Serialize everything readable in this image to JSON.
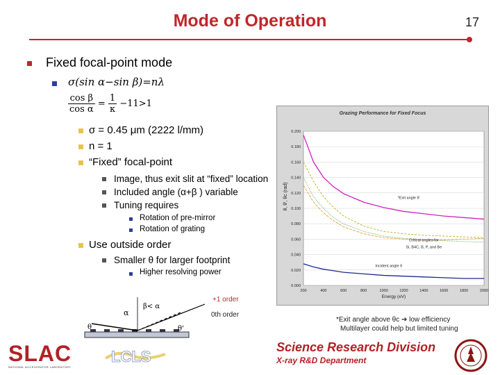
{
  "title": "Mode of Operation",
  "page_number": "17",
  "main_bullet": "Fixed focal-point mode",
  "equation1": {
    "sigma": "σ",
    "open": "(sin",
    "alpha": "α",
    "minus": "−sin",
    "beta": "β",
    "rhs": ")=nλ"
  },
  "equation2": {
    "num": "cos β",
    "den": "cos α",
    "mid": "=",
    "num2": "1",
    "den2": "κ",
    "rhs": "−11>1"
  },
  "params": [
    {
      "text": "σ = 0.45 μm (2222 l/mm)"
    },
    {
      "text": "n = 1"
    },
    {
      "text": "“Fixed” focal-point"
    }
  ],
  "sub_items": [
    {
      "text": "Image, thus exit slit at “fixed” location"
    },
    {
      "text": "Included angle (α+β ) variable"
    },
    {
      "text": "Tuning requires"
    }
  ],
  "tuning_items": [
    {
      "text": "Rotation of pre-mirror"
    },
    {
      "text": "Rotation of grating"
    }
  ],
  "outside_order": "Use outside order",
  "outside_sub": "Smaller θ for larger footprint",
  "outside_sub2": "Higher resolving power",
  "diagram": {
    "order_plus1": "+1 order",
    "order_zero": "0th order",
    "alpha": "α",
    "beta_lt_alpha": "β< α",
    "theta": "θ",
    "theta_prime": "θ'"
  },
  "chart_note": {
    "line1": "*Exit angle above θc ➔ low efficiency",
    "line2": "Multilayer could help but limited tuning"
  },
  "footer": {
    "srd": "Science Research Division",
    "xrd": "X-ray R&D Department"
  },
  "logos": {
    "slac": "SLAC",
    "slac_sub": "NATIONAL ACCELERATOR LABORATORY",
    "lcls": "LCLS"
  },
  "colors": {
    "accent": "#c0262b",
    "blue": "#2a3f9a",
    "yellow": "#e5c64a",
    "magenta": "#d020c0"
  },
  "chart_data": {
    "type": "line",
    "title": "Grazing Performance for Fixed Focus",
    "xlabel": "Energy (eV)",
    "ylabel": "θ, θ', θc (rad)",
    "xlim": [
      200,
      2000
    ],
    "ylim": [
      0,
      0.2
    ],
    "x_ticks": [
      "200",
      "400",
      "600",
      "800",
      "1000",
      "1200",
      "1400",
      "1600",
      "1800",
      "2000"
    ],
    "y_ticks": [
      "0.000",
      "0.020",
      "0.040",
      "0.060",
      "0.080",
      "0.100",
      "0.120",
      "0.140",
      "0.160",
      "0.180",
      "0.200"
    ],
    "annotations": [
      {
        "text": "*Exit angle θ'",
        "x": 1250,
        "y": 0.112
      },
      {
        "text": "Critical angles for",
        "x": 1400,
        "y": 0.057
      },
      {
        "text": "Si, B4C, B, P, and Be",
        "x": 1400,
        "y": 0.048
      },
      {
        "text": "Incident angle θ",
        "x": 1050,
        "y": 0.024
      }
    ],
    "series": [
      {
        "color": "#d020c0",
        "x": [
          200,
          300,
          400,
          500,
          600,
          800,
          1000,
          1200,
          1400,
          1600,
          1800,
          2000
        ],
        "y": [
          0.195,
          0.16,
          0.14,
          0.128,
          0.119,
          0.108,
          0.101,
          0.096,
          0.093,
          0.09,
          0.088,
          0.086
        ]
      },
      {
        "color": "#b8b020",
        "x": [
          200,
          300,
          400,
          500,
          600,
          800,
          1000,
          1200,
          1400,
          1600,
          1800,
          2000
        ],
        "y": [
          0.16,
          0.135,
          0.115,
          0.101,
          0.09,
          0.077,
          0.07,
          0.067,
          0.065,
          0.064,
          0.063,
          0.062
        ]
      },
      {
        "color": "#40a040",
        "x": [
          200,
          300,
          400,
          500,
          600,
          800,
          1000,
          1200,
          1400,
          1600,
          1800,
          2000
        ],
        "y": [
          0.14,
          0.115,
          0.1,
          0.088,
          0.08,
          0.07,
          0.064,
          0.061,
          0.059,
          0.058,
          0.057,
          0.056
        ]
      },
      {
        "color": "#e0a040",
        "x": [
          200,
          300,
          400,
          500,
          600,
          800,
          1000,
          1200,
          1400,
          1600,
          1800,
          2000
        ],
        "y": [
          0.13,
          0.108,
          0.094,
          0.084,
          0.076,
          0.067,
          0.062,
          0.06,
          0.059,
          0.059,
          0.06,
          0.061
        ]
      },
      {
        "color": "#1a2a8a",
        "x": [
          200,
          300,
          400,
          500,
          600,
          800,
          1000,
          1200,
          1400,
          1600,
          1800,
          2000
        ],
        "y": [
          0.028,
          0.024,
          0.021,
          0.019,
          0.017,
          0.015,
          0.013,
          0.012,
          0.011,
          0.01,
          0.009,
          0.009
        ]
      }
    ]
  }
}
